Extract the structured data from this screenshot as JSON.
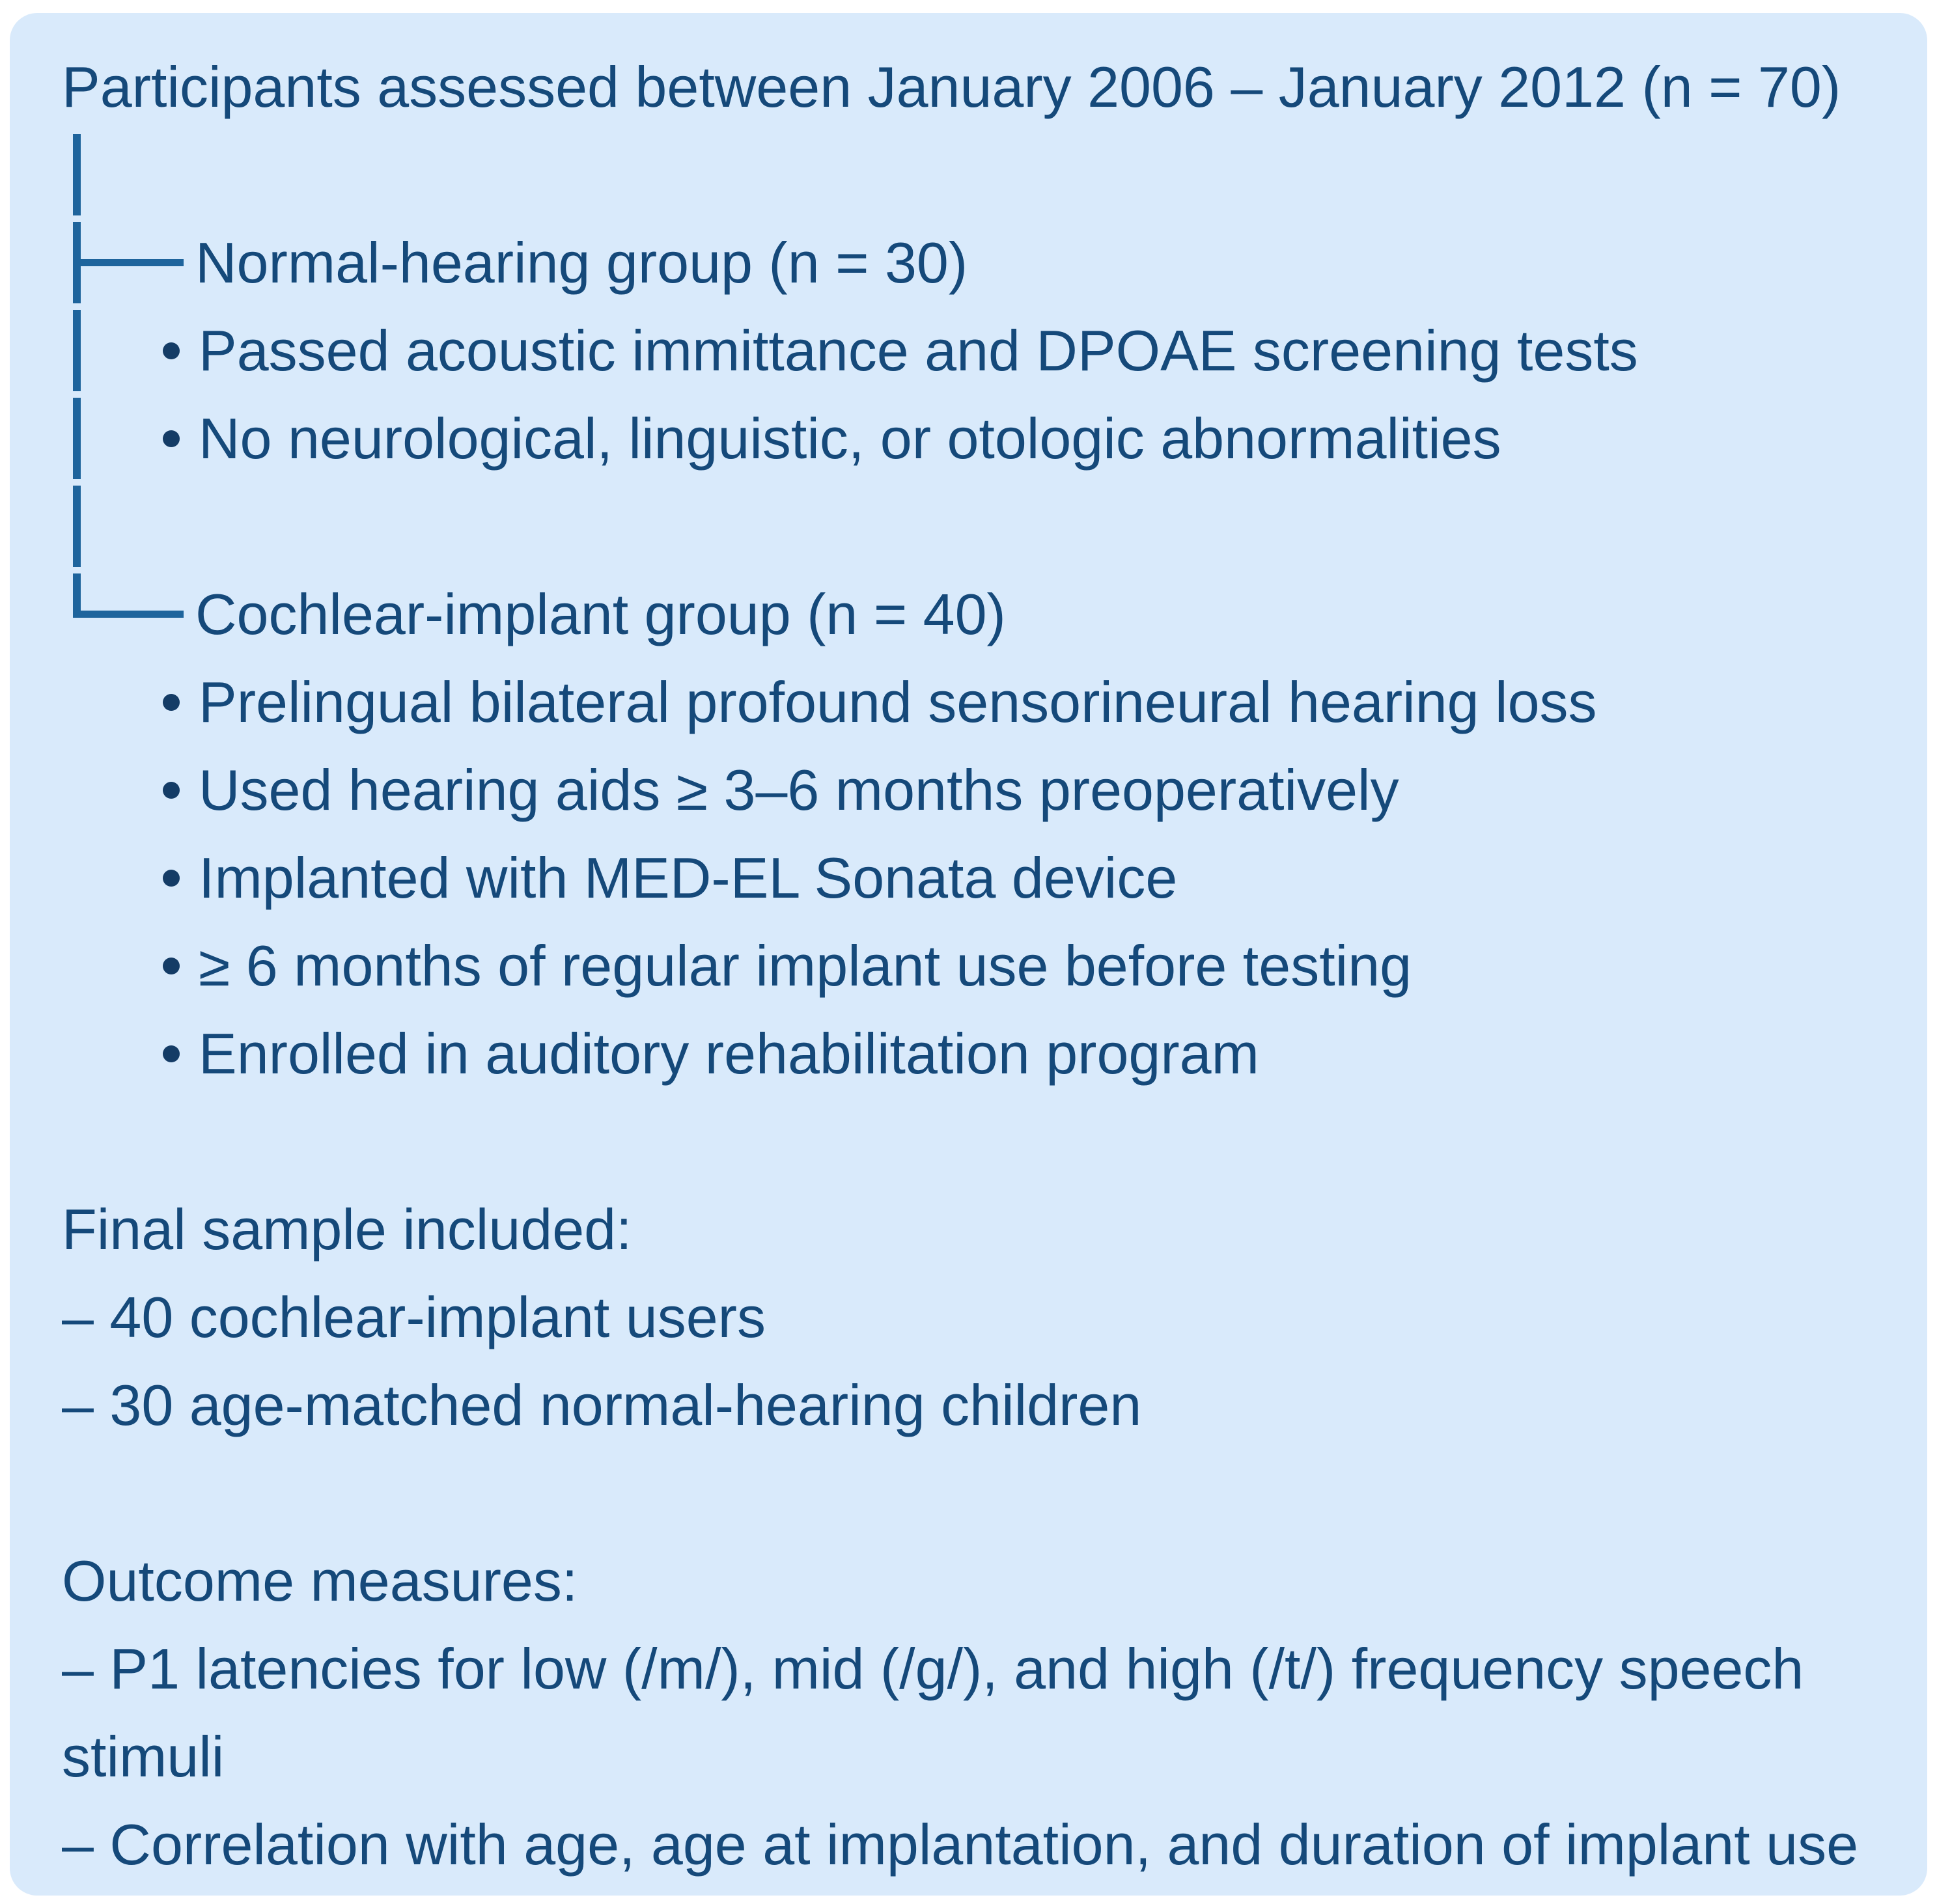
{
  "colors": {
    "page_background": "#ffffff",
    "card_background": "#d9eafb",
    "text": "#15497a",
    "tree_line": "#1e649c"
  },
  "flowchart": {
    "title": "Participants assessed between January 2006 – January 2012 (n = 70)",
    "groups": [
      {
        "label": "Normal-hearing group (n = 30)",
        "criteria": [
          "Passed acoustic immittance and DPOAE screening tests",
          "No neurological, linguistic, or otologic abnormalities"
        ]
      },
      {
        "label": "Cochlear-implant group (n = 40)",
        "criteria": [
          "Prelingual bilateral profound sensorineural hearing loss",
          "Used hearing aids ≥ 3–6 months preoperatively",
          "Implanted with MED-EL Sonata device",
          "≥ 6 months of regular implant use before testing",
          "Enrolled in auditory rehabilitation program"
        ]
      }
    ],
    "final_sample": {
      "heading": "Final sample included:",
      "items": [
        "– 40 cochlear-implant users",
        "– 30 age-matched normal-hearing children"
      ]
    },
    "outcome_measures": {
      "heading": "Outcome measures:",
      "items": [
        "– P1 latencies for low (/m/), mid (/g/), and high (/t/) frequency speech stimuli",
        "– Correlation with age, age at implantation, and duration of implant use"
      ]
    }
  }
}
